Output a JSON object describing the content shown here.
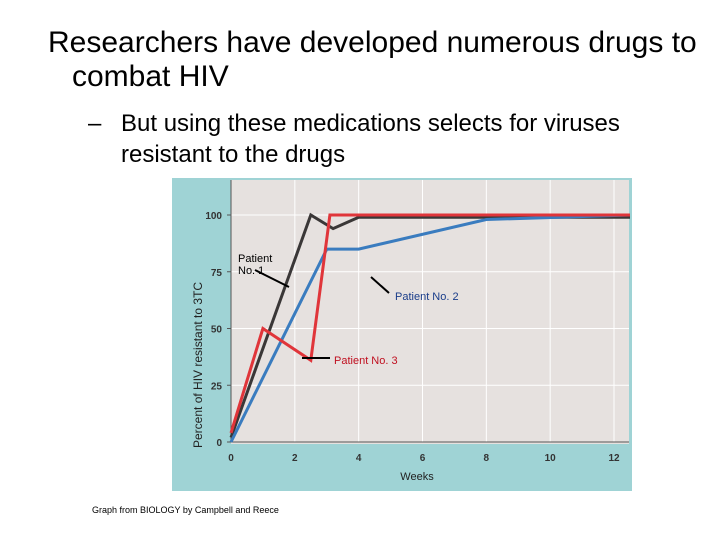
{
  "slide": {
    "title": "Researchers have developed numerous drugs to combat HIV",
    "bullet_dash": "–",
    "bullet": "But using these medications selects for viruses resistant to the drugs",
    "credit": "Graph from BIOLOGY by Campbell and Reece"
  },
  "colors": {
    "panel_bg": "#9fd3d5",
    "plot_bg": "#e6e1df",
    "grid": "#ffffff",
    "patient1": "#3a3737",
    "patient2": "#3a7cbf",
    "patient3": "#e0353a"
  },
  "chart_data": {
    "type": "line",
    "title": "",
    "xlabel": "Weeks",
    "ylabel": "Percent of HIV resistant to 3TC",
    "xlim": [
      0,
      12.5
    ],
    "ylim": [
      0,
      110
    ],
    "x_ticks": [
      "0",
      "2",
      "4",
      "6",
      "8",
      "10",
      "12"
    ],
    "y_ticks": [
      "0",
      "25",
      "50",
      "75",
      "100"
    ],
    "grid": true,
    "series": [
      {
        "name": "Patient No. 1",
        "color": "#3a3737",
        "points": [
          [
            0,
            2
          ],
          [
            2.5,
            100
          ],
          [
            3.2,
            94
          ],
          [
            4,
            99
          ],
          [
            12.5,
            99
          ]
        ]
      },
      {
        "name": "Patient No. 2",
        "color": "#3a7cbf",
        "points": [
          [
            0,
            0
          ],
          [
            3,
            85
          ],
          [
            4,
            85
          ],
          [
            8,
            98
          ],
          [
            12.5,
            100
          ]
        ]
      },
      {
        "name": "Patient No. 3",
        "color": "#e0353a",
        "points": [
          [
            0,
            4
          ],
          [
            1,
            50
          ],
          [
            2.5,
            36
          ],
          [
            3.1,
            100
          ],
          [
            12.5,
            100
          ]
        ]
      }
    ],
    "annotations": [
      {
        "text": "Patient No. 1",
        "series": 0
      },
      {
        "text": "Patient No. 2",
        "series": 1
      },
      {
        "text": "Patient No. 3",
        "series": 2
      }
    ]
  }
}
